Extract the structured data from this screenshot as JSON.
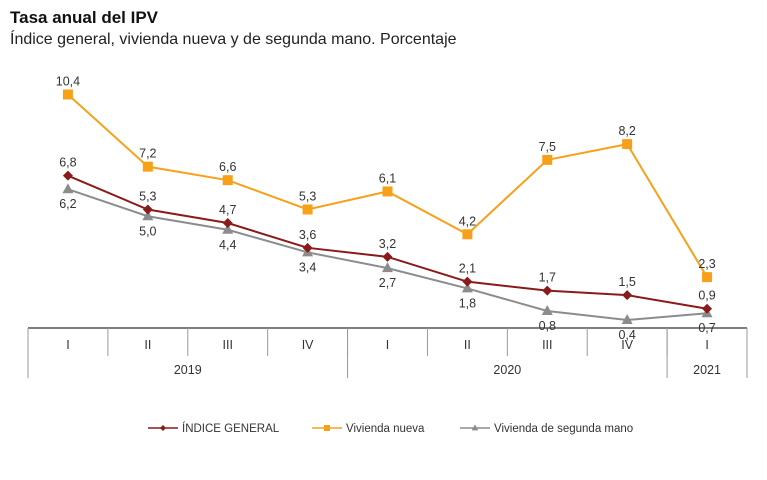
{
  "header": {
    "title": "Tasa anual del IPV",
    "subtitle": "Índice general, vivienda nueva y de segunda mano. Porcentaje"
  },
  "chart_data": {
    "type": "line",
    "title": "Tasa anual del IPV",
    "subtitle": "Índice general, vivienda nueva y de segunda mano. Porcentaje",
    "xlabel": "",
    "ylabel": "",
    "ylim": [
      0,
      11
    ],
    "grid": false,
    "legend": "bottom",
    "categories": [
      "I",
      "II",
      "III",
      "IV",
      "I",
      "II",
      "III",
      "IV",
      "I"
    ],
    "groups": [
      {
        "label": "2019",
        "count": 4
      },
      {
        "label": "2020",
        "count": 4
      },
      {
        "label": "2021",
        "count": 1
      }
    ],
    "series": [
      {
        "name": "ÍNDICE GENERAL",
        "color": "#8b1a1a",
        "marker": "diamond",
        "values": [
          6.8,
          5.3,
          4.7,
          3.6,
          3.2,
          2.1,
          1.7,
          1.5,
          0.9
        ],
        "labels": [
          "6,8",
          "5,3",
          "4,7",
          "3,6",
          "3,2",
          "2,1",
          "1,7",
          "1,5",
          "0,9"
        ]
      },
      {
        "name": "Vivienda nueva",
        "color": "#f7a11a",
        "marker": "square",
        "values": [
          10.4,
          7.2,
          6.6,
          5.3,
          6.1,
          4.2,
          7.5,
          8.2,
          2.3
        ],
        "labels": [
          "10,4",
          "7,2",
          "6,6",
          "5,3",
          "6,1",
          "4,2",
          "7,5",
          "8,2",
          "2,3"
        ]
      },
      {
        "name": "Vivienda de segunda mano",
        "color": "#8c8c8c",
        "marker": "triangle",
        "values": [
          6.2,
          5.0,
          4.4,
          3.4,
          2.7,
          1.8,
          0.8,
          0.4,
          0.7
        ],
        "labels": [
          "6,2",
          "5,0",
          "4,4",
          "3,4",
          "2,7",
          "1,8",
          "0,8",
          "0,4",
          "0,7"
        ]
      }
    ]
  }
}
